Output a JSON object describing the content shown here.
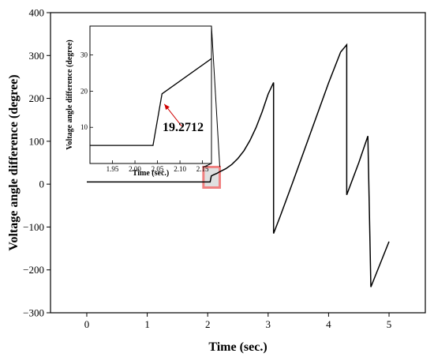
{
  "chart_data": [
    {
      "type": "line",
      "xlabel": "Time (sec.)",
      "ylabel": "Voltage angle difference (degree)",
      "xlim": [
        -0.6,
        5.6
      ],
      "ylim": [
        -300,
        400
      ],
      "xticks": [
        0,
        1,
        2,
        3,
        4,
        5
      ],
      "yticks": [
        -300,
        -200,
        -100,
        0,
        100,
        200,
        300,
        400
      ],
      "series": [
        {
          "color": "#000000",
          "x": [
            0,
            2.04,
            2.06,
            2.1,
            2.15,
            2.2,
            2.3,
            2.4,
            2.5,
            2.6,
            2.7,
            2.8,
            2.9,
            3.0,
            3.09,
            3.09,
            3.2,
            3.4,
            3.6,
            3.8,
            4.0,
            4.2,
            4.3,
            4.3,
            4.5,
            4.65,
            4.65,
            4.7,
            4.7,
            5.0
          ],
          "y": [
            5,
            5,
            19.27,
            22,
            25,
            29,
            36,
            46,
            60,
            78,
            102,
            132,
            168,
            210,
            237,
            -115,
            -75,
            2,
            80,
            158,
            236,
            308,
            325,
            -25,
            50,
            112,
            112,
            -240,
            -240,
            -134
          ]
        }
      ],
      "highlight_box": {
        "x": [
          1.93,
          2.2
        ],
        "y": [
          -8,
          40
        ],
        "color": "#f08080"
      }
    },
    {
      "type": "line",
      "inset": true,
      "xlabel": "Time (sec.)",
      "ylabel": "Voltage angle difference (degree)",
      "xlim": [
        1.9,
        2.17
      ],
      "ylim": [
        0,
        38
      ],
      "xticks": [
        1.95,
        2.0,
        2.05,
        2.1,
        2.15
      ],
      "yticks": [
        10,
        20,
        30
      ],
      "series": [
        {
          "color": "#000000",
          "x": [
            1.9,
            2.04,
            2.06,
            2.17
          ],
          "y": [
            5,
            5,
            19.27,
            29
          ]
        }
      ],
      "annotation": {
        "text": "19.2712",
        "x": 2.06,
        "y": 19.27,
        "arrow_color": "#d00000"
      }
    }
  ]
}
